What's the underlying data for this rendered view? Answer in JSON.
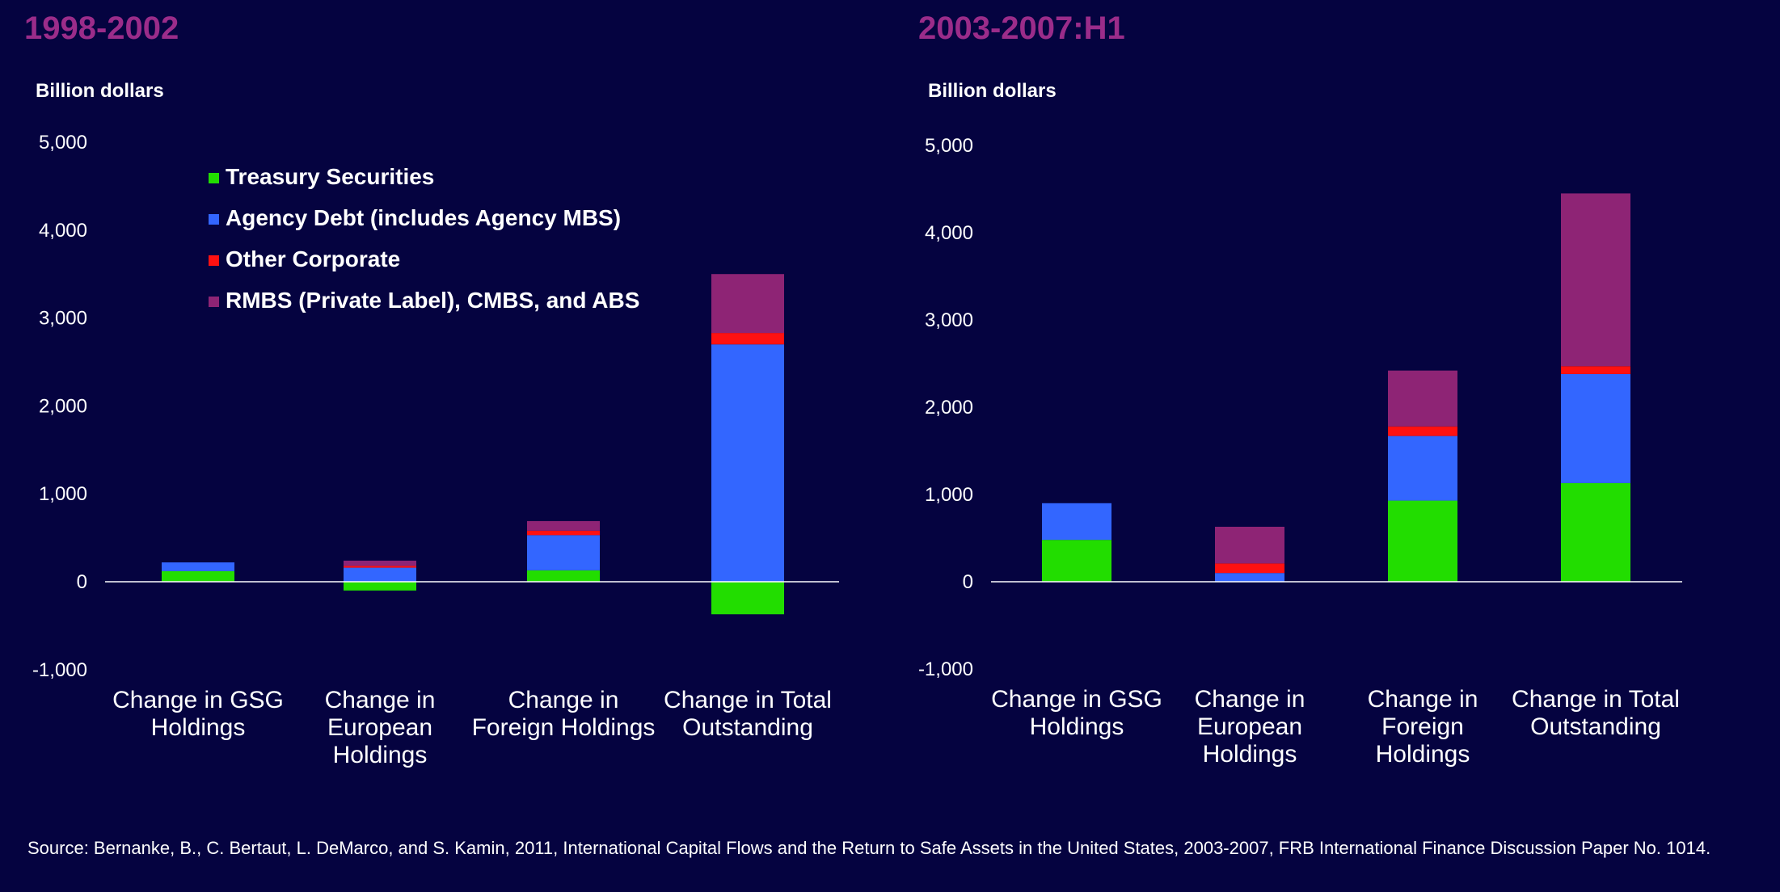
{
  "colors": {
    "background": "#050340",
    "title": "#9b2c8a",
    "axis": "#ffffff",
    "text": "#ffffff"
  },
  "legend": [
    {
      "name": "Treasury Securities",
      "color": "#22dd00"
    },
    {
      "name": "Agency Debt (includes Agency MBS)",
      "color": "#3366ff"
    },
    {
      "name": "Other Corporate",
      "color": "#ff1111"
    },
    {
      "name": "RMBS (Private Label), CMBS, and ABS",
      "color": "#8e2475"
    }
  ],
  "chart_data": [
    {
      "type": "bar",
      "stacked": true,
      "title": "1998-2002",
      "ylabel": "Billion dollars",
      "ylim": [
        -1000,
        5000
      ],
      "yticks": [
        "-1,000",
        "0",
        "1,000",
        "2,000",
        "3,000",
        "4,000",
        "5,000"
      ],
      "legend_position": "top-center",
      "categories": [
        [
          "Change in GSG",
          "Holdings"
        ],
        [
          "Change in",
          "European",
          "Holdings"
        ],
        [
          "Change in",
          "Foreign Holdings"
        ],
        [
          "Change in Total",
          "Outstanding"
        ]
      ],
      "series": [
        {
          "name": "Treasury Securities",
          "values": [
            120,
            -100,
            130,
            -370
          ]
        },
        {
          "name": "Agency Debt (includes Agency MBS)",
          "values": [
            100,
            160,
            400,
            2700
          ]
        },
        {
          "name": "Other Corporate",
          "values": [
            0,
            20,
            50,
            130
          ]
        },
        {
          "name": "RMBS (Private Label), CMBS, and ABS",
          "values": [
            0,
            60,
            110,
            670
          ]
        }
      ]
    },
    {
      "type": "bar",
      "stacked": true,
      "title": "2003-2007:H1",
      "ylabel": "Billion dollars",
      "ylim": [
        -1000,
        5000
      ],
      "yticks": [
        "-1,000",
        "0",
        "1,000",
        "2,000",
        "3,000",
        "4,000",
        "5,000"
      ],
      "categories": [
        [
          "Change in GSG",
          "Holdings"
        ],
        [
          "Change in",
          "European",
          "Holdings"
        ],
        [
          "Change in",
          "Foreign",
          "Holdings"
        ],
        [
          "Change in Total",
          "Outstanding"
        ]
      ],
      "series": [
        {
          "name": "Treasury Securities",
          "values": [
            480,
            0,
            930,
            1130
          ]
        },
        {
          "name": "Agency Debt (includes Agency MBS)",
          "values": [
            420,
            100,
            740,
            1250
          ]
        },
        {
          "name": "Other Corporate",
          "values": [
            0,
            110,
            110,
            90
          ]
        },
        {
          "name": "RMBS (Private Label), CMBS, and ABS",
          "values": [
            0,
            420,
            640,
            1980
          ]
        }
      ]
    }
  ],
  "source": "Source: Bernanke, B., C. Bertaut, L. DeMarco, and S. Kamin, 2011, International Capital Flows and the Return to Safe Assets in the United States, 2003-2007, FRB International Finance Discussion Paper No. 1014."
}
